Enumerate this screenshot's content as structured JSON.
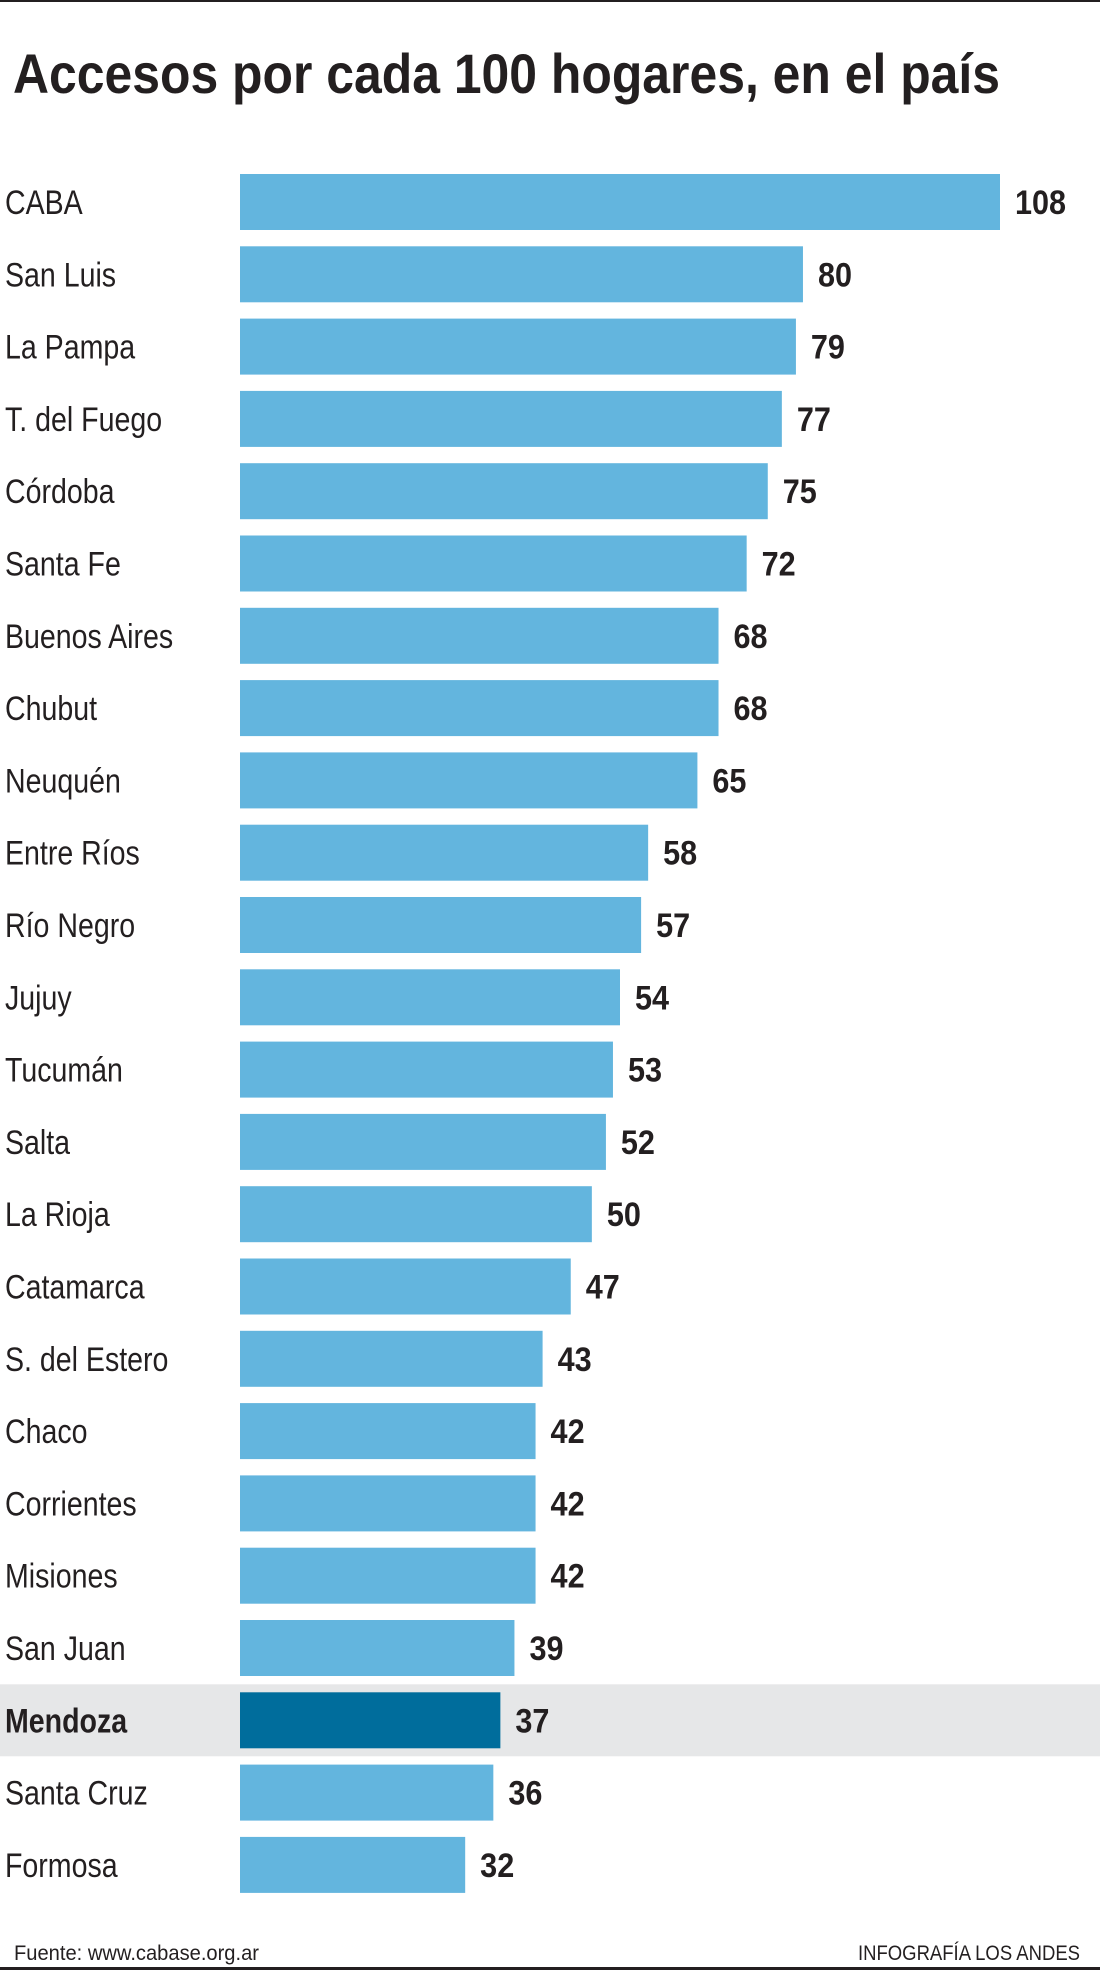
{
  "chart_data": {
    "type": "bar",
    "orientation": "horizontal",
    "title": "Accesos por cada 100 hogares, en el país",
    "categories": [
      "CABA",
      "San Luis",
      "La Pampa",
      "T. del Fuego",
      "Córdoba",
      "Santa Fe",
      "Buenos Aires",
      "Chubut",
      "Neuquén",
      "Entre Ríos",
      "Río Negro",
      "Jujuy",
      "Tucumán",
      "Salta",
      "La Rioja",
      "Catamarca",
      "S. del Estero",
      "Chaco",
      "Corrientes",
      "Misiones",
      "San Juan",
      "Mendoza",
      "Santa Cruz",
      "Formosa"
    ],
    "values": [
      108,
      80,
      79,
      77,
      75,
      72,
      68,
      68,
      65,
      58,
      57,
      54,
      53,
      52,
      50,
      47,
      43,
      42,
      42,
      42,
      39,
      37,
      36,
      32
    ],
    "highlight": "Mendoza",
    "xlim": [
      0,
      108
    ],
    "grid": false,
    "data_labels": true,
    "colors": {
      "bar": "#63b5de",
      "highlight_bar": "#006d9c",
      "highlight_band": "#e6e7e8",
      "text": "#231f20"
    }
  },
  "footer": {
    "source": "Fuente: www.cabase.org.ar",
    "credit": "INFOGRAFÍA LOS ANDES"
  }
}
